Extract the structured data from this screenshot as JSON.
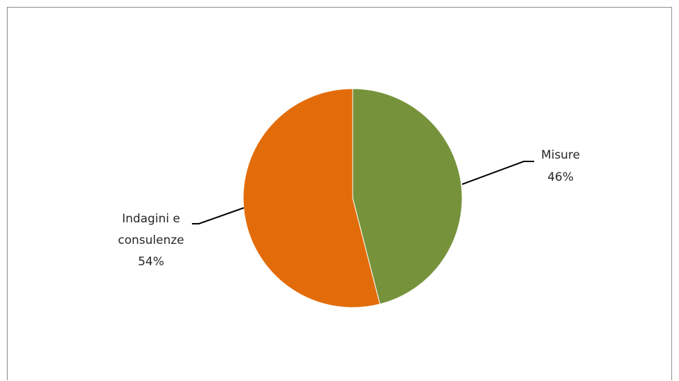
{
  "chart_data": {
    "type": "pie",
    "title": "",
    "slices": [
      {
        "name": "Misure",
        "value": 46,
        "label_name": "Misure",
        "label_value": "46%",
        "color": "#76933c"
      },
      {
        "name": "Indagini e consulenze",
        "value": 54,
        "label_name_lines": [
          "Indagini e",
          "consulenze"
        ],
        "label_value": "54%",
        "color": "#e36c0a"
      }
    ],
    "legend": "none",
    "data_labels": "outside with leader lines"
  }
}
